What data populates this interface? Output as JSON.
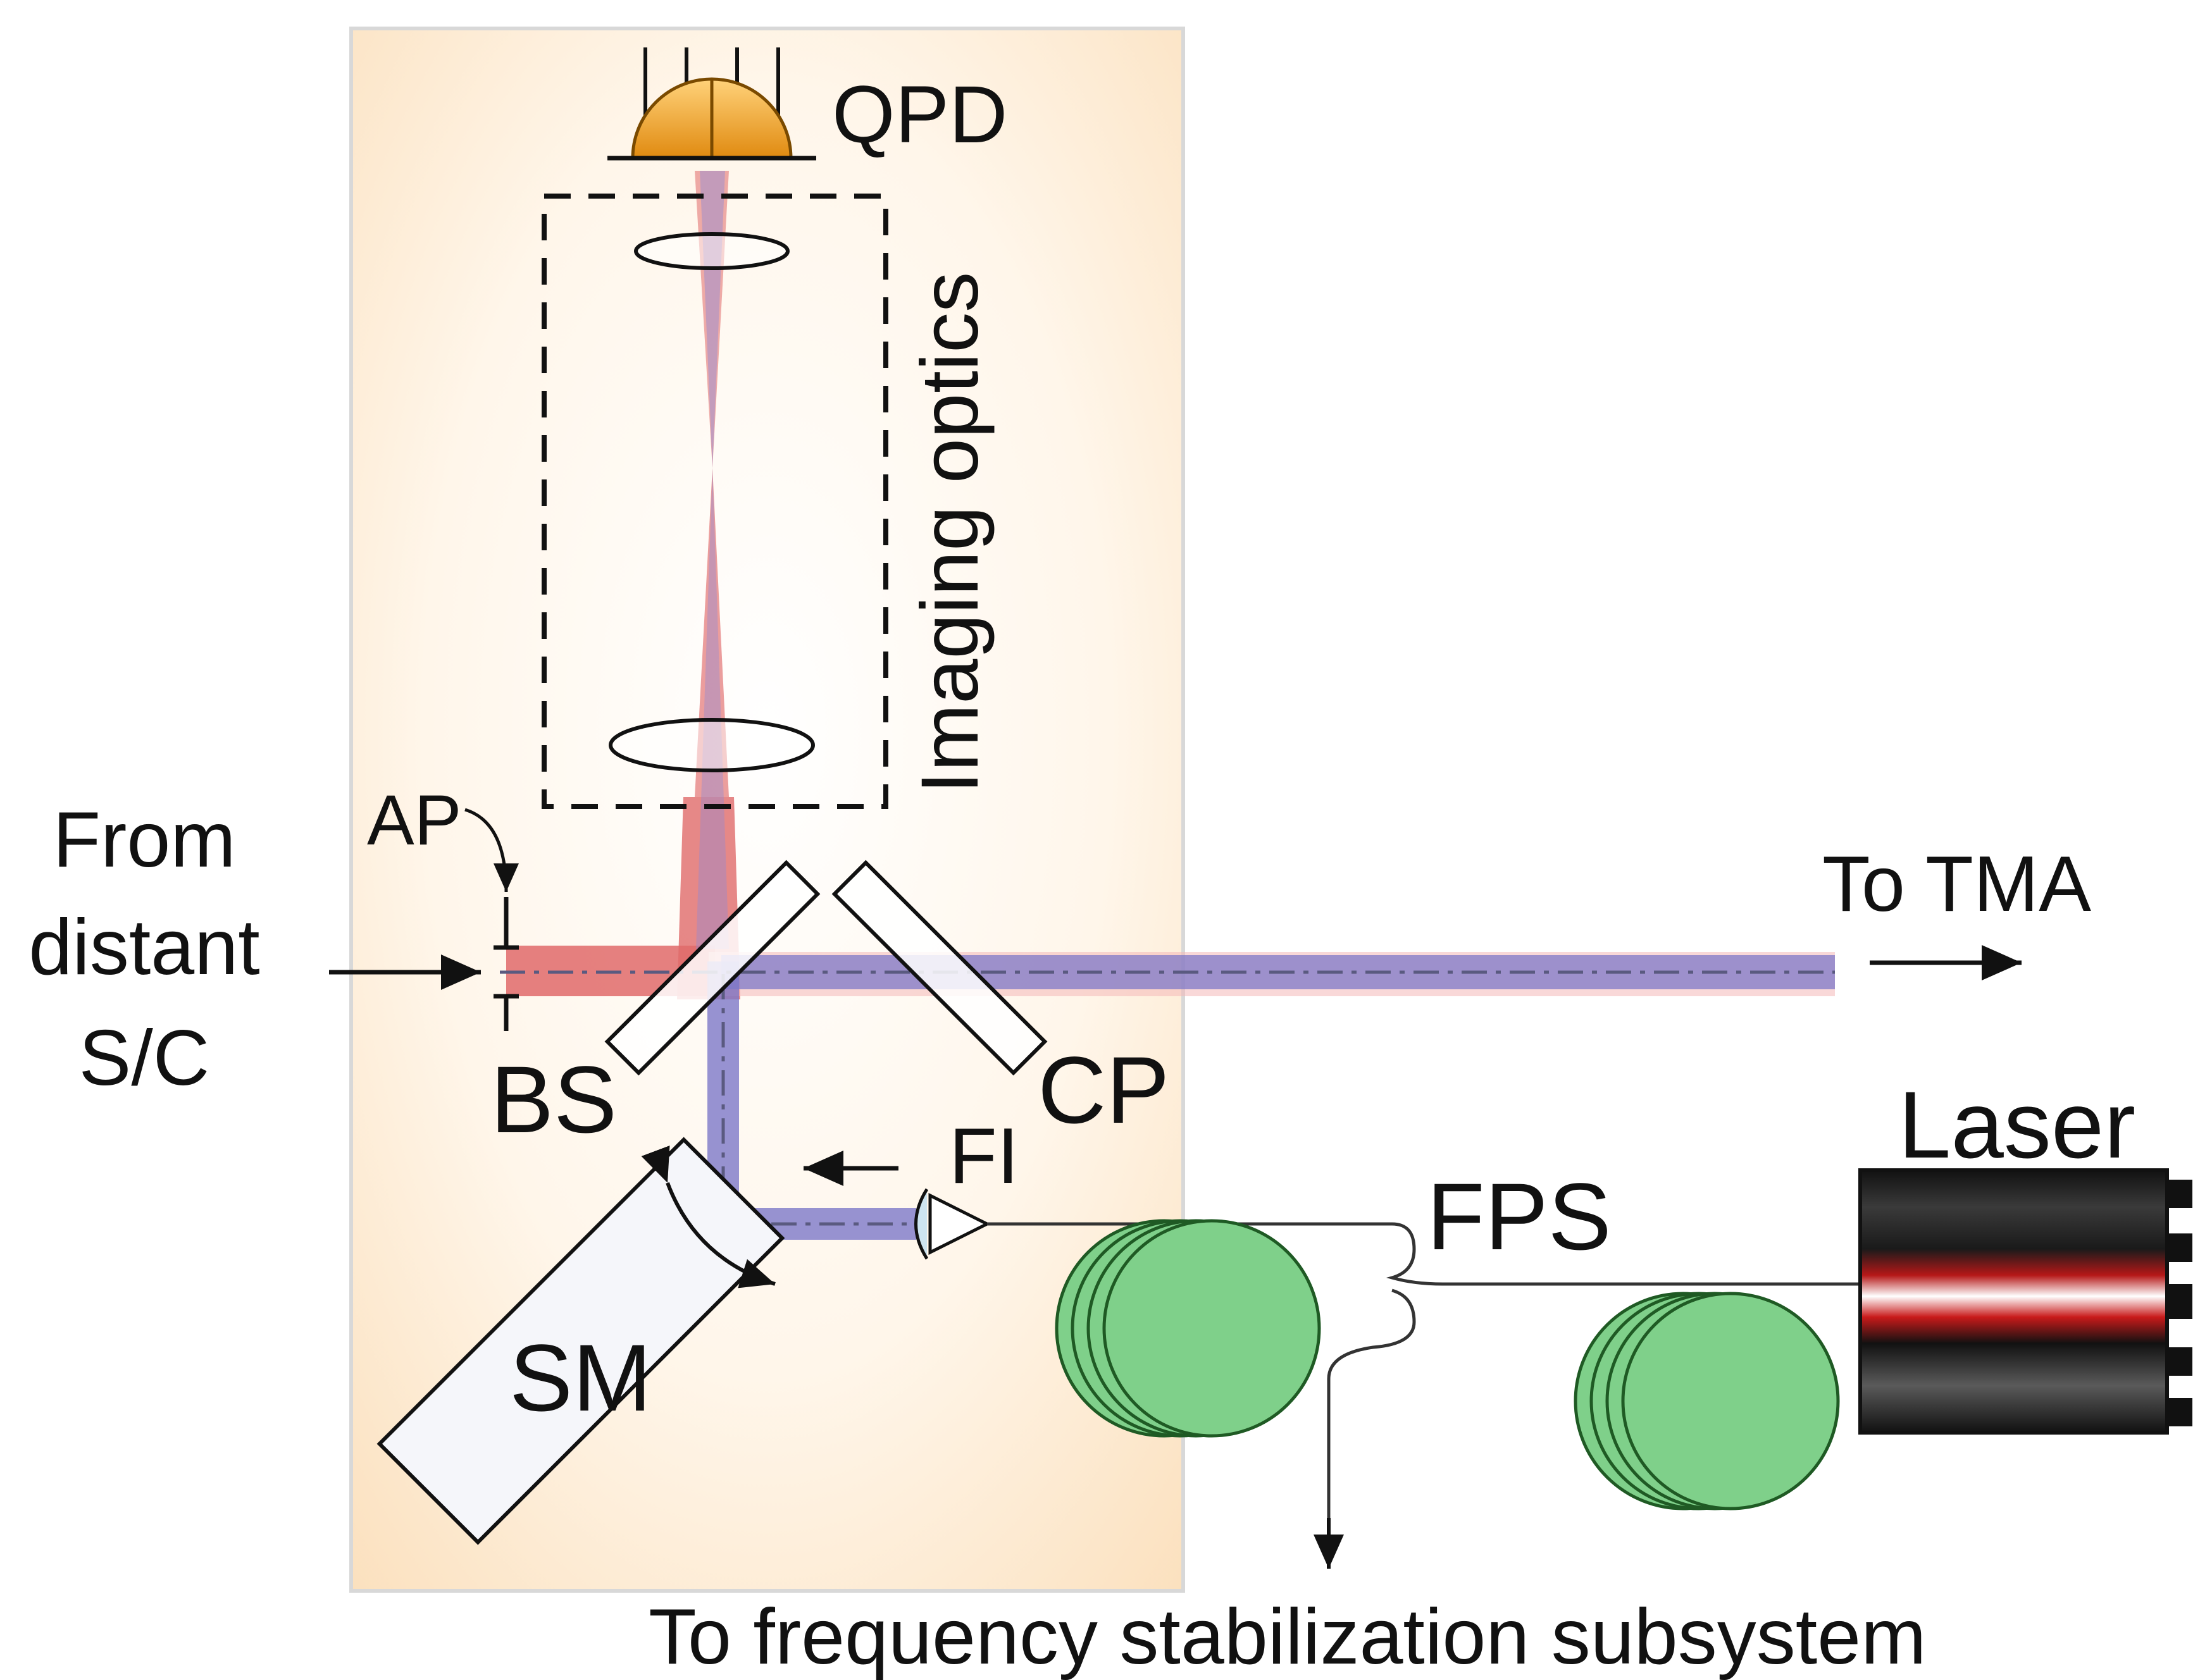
{
  "labels": {
    "qpd": "QPD",
    "imaging_optics": "Imaging optics",
    "ap": "AP",
    "from_line1": "From",
    "from_line2": "distant",
    "from_line3": "S/C",
    "bs": "BS",
    "cp": "CP",
    "to_tma": "To TMA",
    "fi": "FI",
    "fps": "FPS",
    "laser": "Laser",
    "sm": "SM",
    "to_freq": "To frequency stabilization subsystem"
  },
  "colors": {
    "bench_fill": "#fbe3c4",
    "beam_red": "#e06a6a",
    "beam_blue": "#7d78c8",
    "fiber_coil": "#7fd08a",
    "qpd": "#f0a030",
    "line": "#111111"
  }
}
